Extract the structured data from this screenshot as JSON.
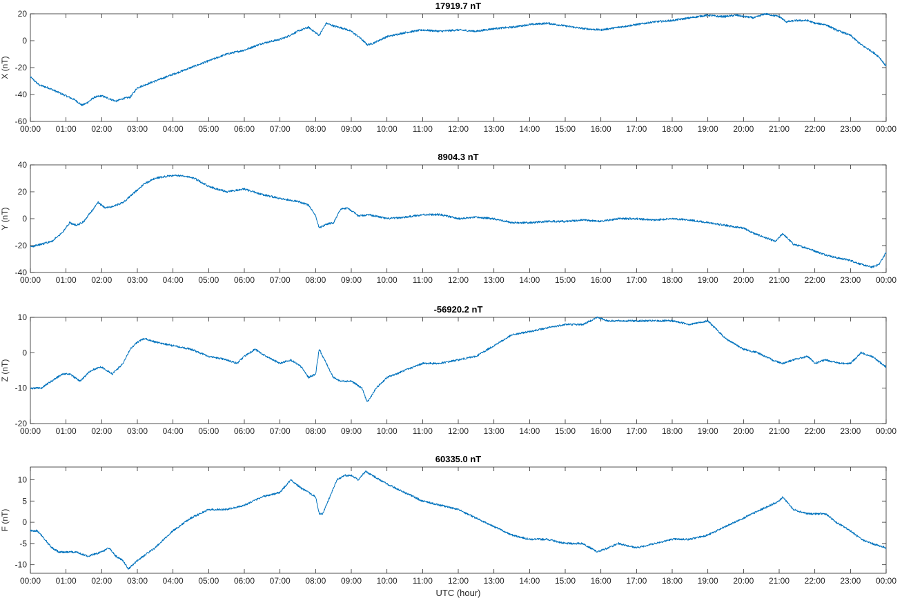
{
  "colors": {
    "series": "#0072bd",
    "axis": "#262626",
    "background": "#ffffff"
  },
  "x_axis_label": "UTC (hour)",
  "x_tick_labels": [
    "00:00",
    "01:00",
    "02:00",
    "03:00",
    "04:00",
    "05:00",
    "06:00",
    "07:00",
    "08:00",
    "09:00",
    "10:00",
    "11:00",
    "12:00",
    "13:00",
    "14:00",
    "15:00",
    "16:00",
    "17:00",
    "18:00",
    "19:00",
    "20:00",
    "21:00",
    "22:00",
    "23:00",
    "00:00"
  ],
  "chart_data": [
    {
      "type": "line",
      "title": "17919.7 nT",
      "ylabel": "X (nT)",
      "xlabel": "",
      "xlim": [
        0,
        24
      ],
      "ylim": [
        -60,
        20
      ],
      "yticks": [
        -60,
        -40,
        -20,
        0,
        20
      ],
      "grid": false,
      "series": [
        {
          "x": [
            0,
            0.25,
            0.5,
            0.75,
            1.0,
            1.25,
            1.45,
            1.6,
            1.8,
            2.0,
            2.2,
            2.4,
            2.6,
            2.8,
            3.0,
            3.5,
            4.0,
            4.5,
            5.0,
            5.5,
            6.0,
            6.5,
            7.0,
            7.2,
            7.5,
            7.8,
            8.0,
            8.1,
            8.3,
            8.5,
            8.8,
            9.0,
            9.25,
            9.45,
            9.6,
            10.0,
            10.5,
            11.0,
            11.5,
            12.0,
            12.5,
            13.0,
            13.5,
            14.0,
            14.5,
            15.0,
            15.5,
            16.0,
            16.5,
            17.0,
            17.5,
            18.0,
            18.5,
            19.0,
            19.3,
            19.5,
            19.8,
            20.0,
            20.3,
            20.6,
            21.0,
            21.2,
            21.5,
            21.8,
            22.0,
            22.3,
            22.6,
            23.0,
            23.3,
            23.6,
            23.8,
            24.0
          ],
          "y": [
            -27,
            -33,
            -35,
            -38,
            -41,
            -44,
            -48,
            -46,
            -42,
            -41,
            -43,
            -45,
            -43,
            -42,
            -35,
            -30,
            -25,
            -20,
            -15,
            -10,
            -7,
            -2,
            1,
            3,
            7,
            10,
            6,
            4,
            13,
            11,
            9,
            7,
            2,
            -3,
            -2,
            3,
            6,
            8,
            7,
            8,
            7,
            9,
            10,
            12,
            13,
            11,
            9,
            8,
            10,
            12,
            14,
            15,
            17,
            19,
            18,
            18,
            19,
            18,
            17,
            20,
            18,
            14,
            15,
            15,
            13,
            12,
            8,
            4,
            -3,
            -8,
            -12,
            -19
          ]
        }
      ]
    },
    {
      "type": "line",
      "title": "8904.3 nT",
      "ylabel": "Y (nT)",
      "xlabel": "",
      "xlim": [
        0,
        24
      ],
      "ylim": [
        -40,
        40
      ],
      "yticks": [
        -40,
        -20,
        0,
        20,
        40
      ],
      "grid": false,
      "series": [
        {
          "x": [
            0,
            0.3,
            0.6,
            0.9,
            1.1,
            1.3,
            1.5,
            1.7,
            1.9,
            2.1,
            2.3,
            2.6,
            2.9,
            3.2,
            3.5,
            3.9,
            4.3,
            4.6,
            5.0,
            5.5,
            6.0,
            6.5,
            7.0,
            7.5,
            7.8,
            8.0,
            8.1,
            8.3,
            8.5,
            8.7,
            8.9,
            9.2,
            9.5,
            10.0,
            10.5,
            11.0,
            11.5,
            12.0,
            12.5,
            13.0,
            13.5,
            14.0,
            14.5,
            15.0,
            15.5,
            16.0,
            16.5,
            17.0,
            17.5,
            18.0,
            18.5,
            19.0,
            19.5,
            20.0,
            20.3,
            20.6,
            20.9,
            21.1,
            21.4,
            21.8,
            22.2,
            22.6,
            23.0,
            23.3,
            23.6,
            23.8,
            24.0
          ],
          "y": [
            -21,
            -19,
            -17,
            -10,
            -3,
            -5,
            -2,
            5,
            12,
            8,
            9,
            12,
            19,
            26,
            30,
            32,
            32,
            30,
            24,
            20,
            22,
            18,
            15,
            13,
            10,
            2,
            -7,
            -4,
            -3,
            7,
            8,
            2,
            3,
            0,
            1,
            3,
            3,
            0,
            1,
            0,
            -3,
            -3,
            -2,
            -2,
            -1,
            -2,
            0,
            0,
            -1,
            0,
            -1,
            -3,
            -5,
            -7,
            -11,
            -14,
            -17,
            -11,
            -19,
            -22,
            -26,
            -29,
            -31,
            -34,
            -36,
            -34,
            -25
          ]
        }
      ]
    },
    {
      "type": "line",
      "title": "-56920.2 nT",
      "ylabel": "Z (nT)",
      "xlabel": "",
      "xlim": [
        0,
        24
      ],
      "ylim": [
        -20,
        10
      ],
      "yticks": [
        -20,
        -10,
        0,
        10
      ],
      "grid": false,
      "series": [
        {
          "x": [
            0,
            0.3,
            0.6,
            0.9,
            1.1,
            1.4,
            1.7,
            2.0,
            2.3,
            2.6,
            2.8,
            3.0,
            3.2,
            3.5,
            4.0,
            4.5,
            5.0,
            5.5,
            5.8,
            6.0,
            6.3,
            6.6,
            7.0,
            7.3,
            7.6,
            7.8,
            8.0,
            8.1,
            8.3,
            8.5,
            8.7,
            9.0,
            9.3,
            9.45,
            9.7,
            10.0,
            10.5,
            11.0,
            11.5,
            12.0,
            12.5,
            13.0,
            13.5,
            14.0,
            14.5,
            15.0,
            15.5,
            15.9,
            16.2,
            16.5,
            17.0,
            17.5,
            18.0,
            18.5,
            19.0,
            19.5,
            20.0,
            20.4,
            20.8,
            21.1,
            21.4,
            21.8,
            22.0,
            22.3,
            22.7,
            23.0,
            23.3,
            23.6,
            24.0
          ],
          "y": [
            -10,
            -10,
            -8,
            -6,
            -6,
            -8,
            -5,
            -4,
            -6,
            -3,
            1,
            3,
            4,
            3,
            2,
            1,
            -1,
            -2,
            -3,
            -1,
            1,
            -1,
            -3,
            -2,
            -4,
            -7,
            -6,
            1,
            -3,
            -7,
            -8,
            -8,
            -10,
            -14,
            -10,
            -7,
            -5,
            -3,
            -3,
            -2,
            -1,
            2,
            5,
            6,
            7,
            8,
            8,
            10,
            9,
            9,
            9,
            9,
            9,
            8,
            9,
            4,
            1,
            0,
            -2,
            -3,
            -2,
            -1,
            -3,
            -2,
            -3,
            -3,
            0,
            -1,
            -4
          ]
        }
      ]
    },
    {
      "type": "line",
      "title": "60335.0 nT",
      "ylabel": "F (nT)",
      "xlabel": "UTC (hour)",
      "xlim": [
        0,
        24
      ],
      "ylim": [
        -12,
        13
      ],
      "yticks": [
        -10,
        -5,
        0,
        5,
        10
      ],
      "grid": false,
      "series": [
        {
          "x": [
            0,
            0.2,
            0.4,
            0.6,
            0.8,
            1.0,
            1.3,
            1.6,
            2.0,
            2.2,
            2.4,
            2.6,
            2.75,
            3.0,
            3.5,
            4.0,
            4.5,
            5.0,
            5.5,
            6.0,
            6.5,
            7.0,
            7.3,
            7.6,
            7.8,
            8.0,
            8.1,
            8.2,
            8.4,
            8.6,
            8.8,
            9.0,
            9.2,
            9.4,
            9.6,
            10.0,
            10.5,
            11.0,
            11.5,
            12.0,
            12.5,
            13.0,
            13.5,
            14.0,
            14.5,
            15.0,
            15.5,
            15.9,
            16.2,
            16.5,
            17.0,
            17.5,
            18.0,
            18.5,
            19.0,
            19.5,
            20.0,
            20.5,
            21.0,
            21.1,
            21.4,
            21.8,
            22.0,
            22.3,
            22.6,
            23.0,
            23.3,
            23.6,
            24.0
          ],
          "y": [
            -2,
            -2,
            -4,
            -6,
            -7,
            -7,
            -7,
            -8,
            -7,
            -6,
            -8,
            -9,
            -11,
            -9,
            -6,
            -2,
            1,
            3,
            3,
            4,
            6,
            7,
            10,
            8,
            7,
            6,
            2,
            2,
            6,
            10,
            11,
            11,
            10,
            12,
            11,
            9,
            7,
            5,
            4,
            3,
            1,
            -1,
            -3,
            -4,
            -4,
            -5,
            -5,
            -7,
            -6,
            -5,
            -6,
            -5,
            -4,
            -4,
            -3,
            -1,
            1,
            3,
            5,
            6,
            3,
            2,
            2,
            2,
            0,
            -2,
            -4,
            -5,
            -6
          ]
        }
      ]
    }
  ]
}
